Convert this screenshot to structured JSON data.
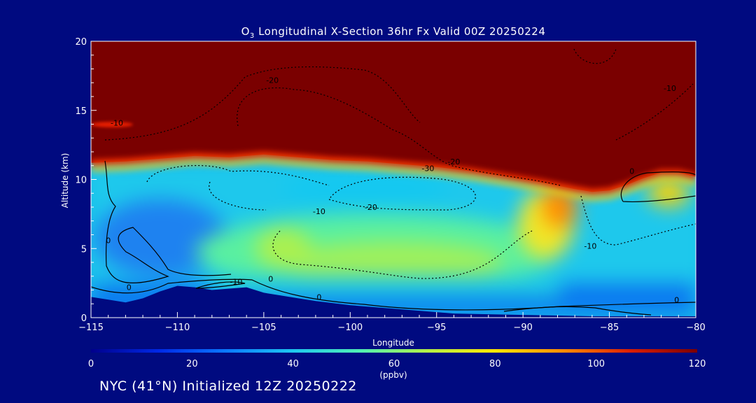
{
  "chart_data": {
    "type": "heatmap",
    "title_prefix": "O",
    "title_sub": "3",
    "title_rest": " Longitudinal X-Section 36hr  Fx Valid 00Z 20250224",
    "xlabel": "Longitude",
    "ylabel": "Altitude (km)",
    "xlim": [
      -115,
      -80
    ],
    "ylim": [
      0,
      20
    ],
    "x_ticks": [
      -115,
      -110,
      -105,
      -100,
      -95,
      -90,
      -85,
      -80
    ],
    "x_tick_labels": [
      "−115",
      "−110",
      "−105",
      "−100",
      "−95",
      "−90",
      "−85",
      "−80"
    ],
    "y_ticks": [
      0,
      5,
      10,
      15,
      20
    ],
    "y_tick_labels": [
      "0",
      "5",
      "10",
      "15",
      "20"
    ],
    "colorbar": {
      "range": [
        0,
        120
      ],
      "ticks": [
        0,
        20,
        40,
        60,
        80,
        100,
        120
      ],
      "tick_labels": [
        "0",
        "20",
        "40",
        "60",
        "80",
        "100",
        "120"
      ],
      "units": "(ppbv)",
      "colors": [
        "#00008c",
        "#0028e6",
        "#0a78ff",
        "#1ec8f0",
        "#50f0b4",
        "#b4f046",
        "#ffe600",
        "#ff8c00",
        "#dc1e00",
        "#7a0000"
      ]
    },
    "tropopause_height_km": [
      [
        -115,
        11.2
      ],
      [
        -113,
        11.3
      ],
      [
        -111,
        11.5
      ],
      [
        -109,
        11.7
      ],
      [
        -107,
        11.6
      ],
      [
        -105,
        11.8
      ],
      [
        -103,
        11.6
      ],
      [
        -101,
        11.4
      ],
      [
        -99,
        11.3
      ],
      [
        -97,
        11.1
      ],
      [
        -95,
        10.9
      ],
      [
        -93,
        10.6
      ],
      [
        -91,
        10.2
      ],
      [
        -89,
        9.8
      ],
      [
        -87,
        9.3
      ],
      [
        -86,
        9.1
      ],
      [
        -85,
        9.2
      ],
      [
        -84,
        9.6
      ],
      [
        -83,
        10.1
      ],
      [
        -82,
        10.5
      ],
      [
        -81,
        10.5
      ],
      [
        -80,
        10.2
      ]
    ],
    "terrain_height_km": [
      [
        -115,
        1.5
      ],
      [
        -114,
        1.3
      ],
      [
        -113,
        1.1
      ],
      [
        -112,
        1.4
      ],
      [
        -111,
        1.9
      ],
      [
        -110,
        2.3
      ],
      [
        -109,
        2.2
      ],
      [
        -108,
        2.0
      ],
      [
        -107,
        2.1
      ],
      [
        -106,
        2.2
      ],
      [
        -105,
        1.8
      ],
      [
        -104,
        1.6
      ],
      [
        -103,
        1.4
      ],
      [
        -102,
        1.2
      ],
      [
        -100,
        0.9
      ],
      [
        -98,
        0.7
      ],
      [
        -96,
        0.5
      ],
      [
        -94,
        0.3
      ],
      [
        -92,
        0.25
      ],
      [
        -90,
        0.2
      ],
      [
        -88,
        0.15
      ],
      [
        -86,
        0.1
      ],
      [
        -84,
        0.1
      ],
      [
        -82,
        0.1
      ],
      [
        -80,
        0.1
      ]
    ],
    "contour_labels": [
      {
        "text": "-20",
        "lon": -104.5,
        "alt": 17.0
      },
      {
        "text": "-10",
        "lon": -113.5,
        "alt": 13.9
      },
      {
        "text": "-10",
        "lon": -81.5,
        "alt": 16.4
      },
      {
        "text": "-30",
        "lon": -95.5,
        "alt": 10.6
      },
      {
        "text": "-20",
        "lon": -94.0,
        "alt": 11.1
      },
      {
        "text": "0",
        "lon": -83.7,
        "alt": 10.4
      },
      {
        "text": "-20",
        "lon": -98.8,
        "alt": 7.8
      },
      {
        "text": "-10",
        "lon": -101.8,
        "alt": 7.5
      },
      {
        "text": "-10",
        "lon": -86.1,
        "alt": 5.0
      },
      {
        "text": "0",
        "lon": -114.0,
        "alt": 5.4
      },
      {
        "text": "0",
        "lon": -112.8,
        "alt": 2.0
      },
      {
        "text": "-10",
        "lon": -106.6,
        "alt": 2.4
      },
      {
        "text": "0",
        "lon": -104.6,
        "alt": 2.6
      },
      {
        "text": "0",
        "lon": -101.8,
        "alt": 1.3
      },
      {
        "text": "0",
        "lon": -81.1,
        "alt": 1.1
      }
    ]
  },
  "footer": "NYC (41°N) Initialized 12Z 20250222"
}
